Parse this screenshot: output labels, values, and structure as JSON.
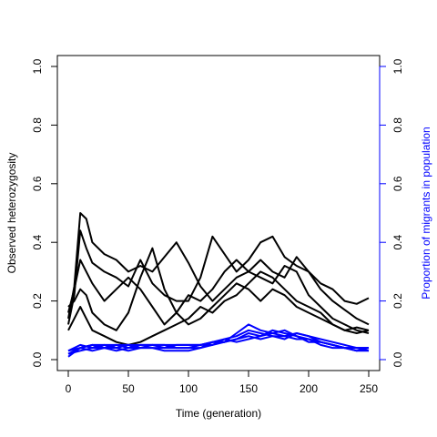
{
  "chart_data": {
    "type": "line",
    "xlabel": "Time (generation)",
    "ylabel": "Observed heterozygosity",
    "y2label": "Proportion of migrants in population",
    "xlim": [
      0,
      250
    ],
    "ylim": [
      0,
      1
    ],
    "y2lim": [
      0,
      1
    ],
    "xticks": [
      "0",
      "50",
      "100",
      "150",
      "200",
      "250"
    ],
    "yticks": [
      "0.0",
      "0.2",
      "0.4",
      "0.6",
      "0.8",
      "1.0"
    ],
    "y2ticks": [
      "0.0",
      "0.2",
      "0.4",
      "0.6",
      "0.8",
      "1.0"
    ],
    "grid": false,
    "colors": {
      "heterozygosity": "#000000",
      "migrants": "#0000ff",
      "y2axis": "#0000ff"
    },
    "series": [
      {
        "axis": "left",
        "x": [
          0,
          5,
          10,
          15,
          20,
          30,
          40,
          50,
          60,
          70,
          80,
          90,
          100,
          110,
          120,
          130,
          140,
          150,
          160,
          170,
          180,
          190,
          200,
          210,
          220,
          230,
          240,
          250
        ],
        "values": [
          0.14,
          0.25,
          0.5,
          0.48,
          0.4,
          0.36,
          0.34,
          0.3,
          0.32,
          0.3,
          0.35,
          0.4,
          0.33,
          0.25,
          0.2,
          0.24,
          0.28,
          0.3,
          0.34,
          0.3,
          0.28,
          0.35,
          0.3,
          0.26,
          0.24,
          0.2,
          0.19,
          0.21
        ]
      },
      {
        "axis": "left",
        "x": [
          0,
          5,
          10,
          15,
          20,
          30,
          40,
          50,
          60,
          70,
          80,
          90,
          100,
          110,
          120,
          130,
          140,
          150,
          160,
          170,
          180,
          190,
          200,
          210,
          220,
          230,
          240,
          250
        ],
        "values": [
          0.12,
          0.22,
          0.44,
          0.38,
          0.33,
          0.3,
          0.28,
          0.25,
          0.34,
          0.26,
          0.22,
          0.2,
          0.2,
          0.28,
          0.42,
          0.36,
          0.3,
          0.34,
          0.4,
          0.42,
          0.35,
          0.32,
          0.3,
          0.24,
          0.2,
          0.17,
          0.14,
          0.12
        ]
      },
      {
        "axis": "left",
        "x": [
          0,
          5,
          10,
          15,
          20,
          30,
          40,
          50,
          60,
          70,
          80,
          90,
          100,
          110,
          120,
          130,
          140,
          150,
          160,
          170,
          180,
          190,
          200,
          210,
          220,
          230,
          240,
          250
        ],
        "values": [
          0.16,
          0.24,
          0.34,
          0.3,
          0.26,
          0.2,
          0.24,
          0.28,
          0.24,
          0.18,
          0.12,
          0.16,
          0.22,
          0.2,
          0.24,
          0.3,
          0.34,
          0.3,
          0.28,
          0.26,
          0.32,
          0.3,
          0.22,
          0.18,
          0.14,
          0.12,
          0.1,
          0.09
        ]
      },
      {
        "axis": "left",
        "x": [
          0,
          5,
          10,
          15,
          20,
          30,
          40,
          50,
          60,
          70,
          80,
          90,
          100,
          110,
          120,
          130,
          140,
          150,
          160,
          170,
          180,
          190,
          200,
          210,
          220,
          230,
          240,
          250
        ],
        "values": [
          0.18,
          0.2,
          0.24,
          0.22,
          0.16,
          0.12,
          0.1,
          0.16,
          0.28,
          0.38,
          0.24,
          0.16,
          0.12,
          0.14,
          0.18,
          0.22,
          0.26,
          0.24,
          0.2,
          0.24,
          0.22,
          0.18,
          0.16,
          0.14,
          0.12,
          0.1,
          0.11,
          0.1
        ]
      },
      {
        "axis": "left",
        "x": [
          0,
          5,
          10,
          15,
          20,
          30,
          40,
          50,
          60,
          70,
          80,
          90,
          100,
          110,
          120,
          130,
          140,
          150,
          160,
          170,
          180,
          190,
          200,
          210,
          220,
          230,
          240,
          250
        ],
        "values": [
          0.1,
          0.14,
          0.18,
          0.14,
          0.1,
          0.08,
          0.06,
          0.05,
          0.06,
          0.08,
          0.1,
          0.12,
          0.14,
          0.18,
          0.16,
          0.2,
          0.22,
          0.26,
          0.3,
          0.28,
          0.24,
          0.2,
          0.18,
          0.16,
          0.12,
          0.1,
          0.09,
          0.1
        ]
      },
      {
        "axis": "right",
        "x": [
          0,
          10,
          20,
          30,
          40,
          50,
          60,
          70,
          80,
          90,
          100,
          110,
          120,
          130,
          140,
          150,
          160,
          170,
          180,
          190,
          200,
          210,
          220,
          230,
          240,
          250
        ],
        "values": [
          0.01,
          0.04,
          0.05,
          0.05,
          0.04,
          0.05,
          0.05,
          0.05,
          0.05,
          0.05,
          0.05,
          0.05,
          0.06,
          0.06,
          0.09,
          0.12,
          0.1,
          0.09,
          0.1,
          0.08,
          0.07,
          0.06,
          0.05,
          0.04,
          0.04,
          0.04
        ]
      },
      {
        "axis": "right",
        "x": [
          0,
          10,
          20,
          30,
          40,
          50,
          60,
          70,
          80,
          90,
          100,
          110,
          120,
          130,
          140,
          150,
          160,
          170,
          180,
          190,
          200,
          210,
          220,
          230,
          240,
          250
        ],
        "values": [
          0.02,
          0.03,
          0.04,
          0.04,
          0.03,
          0.04,
          0.04,
          0.04,
          0.04,
          0.04,
          0.04,
          0.04,
          0.05,
          0.07,
          0.08,
          0.1,
          0.09,
          0.08,
          0.07,
          0.09,
          0.08,
          0.07,
          0.06,
          0.05,
          0.04,
          0.03
        ]
      },
      {
        "axis": "right",
        "x": [
          0,
          10,
          20,
          30,
          40,
          50,
          60,
          70,
          80,
          90,
          100,
          110,
          120,
          130,
          140,
          150,
          160,
          170,
          180,
          190,
          200,
          210,
          220,
          230,
          240,
          250
        ],
        "values": [
          0.02,
          0.04,
          0.03,
          0.04,
          0.04,
          0.03,
          0.04,
          0.04,
          0.03,
          0.03,
          0.03,
          0.04,
          0.06,
          0.06,
          0.07,
          0.09,
          0.08,
          0.1,
          0.09,
          0.08,
          0.06,
          0.06,
          0.05,
          0.04,
          0.03,
          0.04
        ]
      },
      {
        "axis": "right",
        "x": [
          0,
          10,
          20,
          30,
          40,
          50,
          60,
          70,
          80,
          90,
          100,
          110,
          120,
          130,
          140,
          150,
          160,
          170,
          180,
          190,
          200,
          210,
          220,
          230,
          240,
          250
        ],
        "values": [
          0.03,
          0.04,
          0.05,
          0.04,
          0.05,
          0.05,
          0.04,
          0.05,
          0.05,
          0.04,
          0.04,
          0.05,
          0.05,
          0.06,
          0.07,
          0.08,
          0.07,
          0.08,
          0.08,
          0.07,
          0.07,
          0.05,
          0.04,
          0.04,
          0.04,
          0.04
        ]
      },
      {
        "axis": "right",
        "x": [
          0,
          10,
          20,
          30,
          40,
          50,
          60,
          70,
          80,
          90,
          100,
          110,
          120,
          130,
          140,
          150,
          160,
          170,
          180,
          190,
          200,
          210,
          220,
          230,
          240,
          250
        ],
        "values": [
          0.03,
          0.05,
          0.04,
          0.05,
          0.05,
          0.04,
          0.05,
          0.05,
          0.04,
          0.05,
          0.05,
          0.05,
          0.06,
          0.07,
          0.06,
          0.07,
          0.08,
          0.09,
          0.08,
          0.09,
          0.08,
          0.06,
          0.05,
          0.04,
          0.03,
          0.03
        ]
      }
    ]
  }
}
